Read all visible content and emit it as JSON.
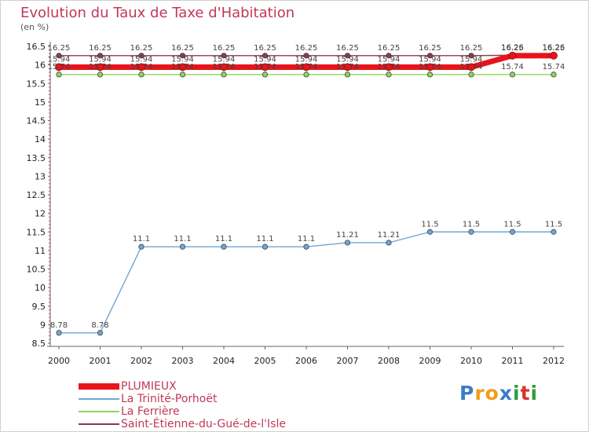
{
  "header": {
    "title": "Evolution du Taux de Taxe d'Habitation",
    "unit": "(en %)"
  },
  "logo": {
    "text": "Proxiti",
    "letters": [
      "P",
      "r",
      "o",
      "x",
      "i",
      "t",
      "i"
    ],
    "colors": [
      "#3b7dc4",
      "#f39c1b",
      "#f39c1b",
      "#3b7dc4",
      "#2f9e3a",
      "#d8332a",
      "#2f9e3a"
    ]
  },
  "chart_data": {
    "type": "line",
    "categories": [
      "2000",
      "2001",
      "2002",
      "2003",
      "2004",
      "2005",
      "2006",
      "2007",
      "2008",
      "2009",
      "2010",
      "2011",
      "2012"
    ],
    "ylim": [
      8.5,
      16.5
    ],
    "yticks": [
      "8.5",
      "9",
      "9.5",
      "10",
      "10.5",
      "11",
      "11.5",
      "12",
      "12.5",
      "13",
      "13.5",
      "14",
      "14.5",
      "15",
      "15.5",
      "16",
      "16.5"
    ],
    "grid": false,
    "legend_position": "bottom-left",
    "series": [
      {
        "name": "Saint-Étienne-du-Gué-de-l'Isle",
        "color": "#8e3a4e",
        "values": [
          16.25,
          16.25,
          16.25,
          16.25,
          16.25,
          16.25,
          16.25,
          16.25,
          16.25,
          16.25,
          16.25,
          16.26,
          16.26
        ],
        "labels": [
          "16.25",
          "16.25",
          "16.25",
          "16.25",
          "16.25",
          "16.25",
          "16.25",
          "16.25",
          "16.25",
          "16.25",
          "16.25",
          "16.26",
          "16.26"
        ]
      },
      {
        "name": "La Ferrière",
        "color": "#8ed45a",
        "values": [
          15.74,
          15.74,
          15.74,
          15.74,
          15.74,
          15.74,
          15.74,
          15.74,
          15.74,
          15.74,
          15.74,
          15.74,
          15.74
        ],
        "labels": [
          "15.74",
          "15.74",
          "15.74",
          "15.74",
          "15.74",
          "15.74",
          "15.74",
          "15.74",
          "15.74",
          "15.74",
          "15.74",
          "15.74",
          "15.74"
        ]
      },
      {
        "name": "La Trinité-Porhoët",
        "color": "#6fa6d6",
        "values": [
          8.78,
          8.78,
          11.1,
          11.1,
          11.1,
          11.1,
          11.1,
          11.21,
          11.21,
          11.5,
          11.5,
          11.5,
          11.5
        ],
        "labels": [
          "8.78",
          "8.78",
          "11.1",
          "11.1",
          "11.1",
          "11.1",
          "11.1",
          "11.21",
          "11.21",
          "11.5",
          "11.5",
          "11.5",
          "11.5"
        ]
      },
      {
        "name": "PLUMIEUX",
        "color": "#e8141b",
        "values": [
          15.94,
          15.94,
          15.94,
          15.94,
          15.94,
          15.94,
          15.94,
          15.94,
          15.94,
          15.94,
          15.94,
          16.25,
          16.25
        ],
        "labels": [
          "15.94",
          "15.94",
          "15.94",
          "15.94",
          "15.94",
          "15.94",
          "15.94",
          "15.94",
          "15.94",
          "15.94",
          "15.94",
          "16.25",
          "16.25"
        ]
      }
    ],
    "legend": [
      {
        "name": "PLUMIEUX",
        "color": "#e8141b",
        "thick": true
      },
      {
        "name": "La Trinité-Porhoët",
        "color": "#6fa6d6",
        "thick": false
      },
      {
        "name": "La Ferrière",
        "color": "#8ed45a",
        "thick": false
      },
      {
        "name": "Saint-Étienne-du-Gué-de-l'Isle",
        "color": "#8e3a4e",
        "thick": false
      }
    ]
  }
}
